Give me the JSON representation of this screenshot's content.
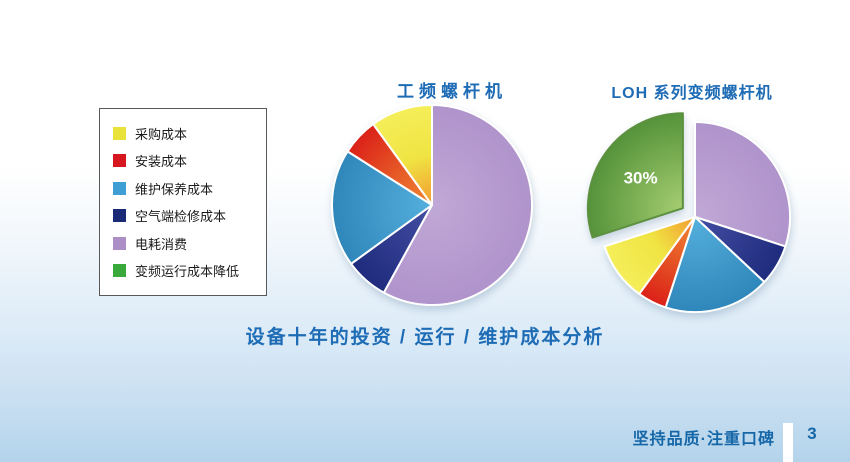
{
  "slide": {
    "caption": "设备十年的投资 / 运行 / 维护成本分析",
    "footer": {
      "slogan": "坚持品质·注重口碑",
      "page_number": "3"
    }
  },
  "legend": {
    "items": [
      {
        "label": "采购成本",
        "color": "#e9e23b"
      },
      {
        "label": "安装成本",
        "color": "#d6171f"
      },
      {
        "label": "维护保养成本",
        "color": "#3f9fd4"
      },
      {
        "label": "空气端检修成本",
        "color": "#1b2a77"
      },
      {
        "label": "电耗消费",
        "color": "#ab8fc6"
      },
      {
        "label": "变频运行成本降低",
        "color": "#3aa93c"
      }
    ]
  },
  "slice_colors": {
    "电耗消费": {
      "center": "#c0a8d6",
      "edge": "#af93cb"
    },
    "空气端检修成本": {
      "center": "#444fa3",
      "edge": "#1f2b7d"
    },
    "维护保养成本": {
      "center": "#55b0dd",
      "edge": "#2f86ba"
    },
    "安装成本": {
      "center": "#f08a33",
      "edge": "#db2118"
    },
    "采购成本": {
      "center": "#f29a30",
      "mid": "#f0e443",
      "edge": "#f4ee59"
    },
    "变频运行成本降低": {
      "center": "#a6cd71",
      "edge": "#55933a",
      "stroke": "#5d9141"
    }
  },
  "chart_data": [
    {
      "type": "pie",
      "title": "工频螺杆机",
      "legend_position": "left-shared",
      "slices_clockwise_from_top": [
        {
          "label": "电耗消费",
          "value": 58
        },
        {
          "label": "空气端检修成本",
          "value": 7
        },
        {
          "label": "维护保养成本",
          "value": 19
        },
        {
          "label": "安装成本",
          "value": 6
        },
        {
          "label": "采购成本",
          "value": 10
        }
      ]
    },
    {
      "type": "pie",
      "title": "LOH 系列变频螺杆机",
      "legend_position": "left-shared",
      "slices_clockwise_from_top": [
        {
          "label": "电耗消费",
          "value": 30
        },
        {
          "label": "空气端检修成本",
          "value": 7
        },
        {
          "label": "维护保养成本",
          "value": 18
        },
        {
          "label": "安装成本",
          "value": 5
        },
        {
          "label": "采购成本",
          "value": 10
        },
        {
          "label": "变频运行成本降低",
          "value": 30,
          "data_label": "30%",
          "exploded": true
        }
      ]
    }
  ]
}
